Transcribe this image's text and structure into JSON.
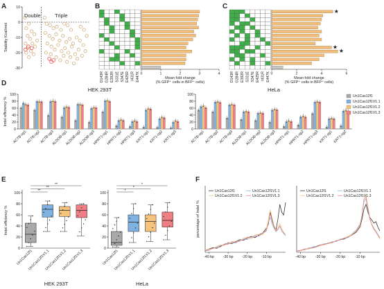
{
  "panels": {
    "A": {
      "label": "A"
    },
    "B": {
      "label": "B"
    },
    "C": {
      "label": "C"
    },
    "D": {
      "label": "D"
    },
    "E": {
      "label": "E"
    },
    "F": {
      "label": "F"
    }
  },
  "colors": {
    "Un1Cas12f1": "#a9a9a9",
    "Un1Cas12f1V1.1": "#7fb2e0",
    "Un1Cas12f1V1.2": "#f6c37c",
    "Un1Cas12f1V1.3": "#ef7f84",
    "gridGreen": "#3fae49",
    "barOrange": "#f2bd7a",
    "scatterBrown": "#c9a26a",
    "scatterRed": "#e84c4c"
  },
  "chart_data": [
    {
      "id": "A",
      "type": "scatter",
      "ylabel": "Stability Kcal/mol",
      "ylim": [
        -30,
        10
      ],
      "yticks": [
        10,
        0,
        -10,
        -20,
        -30
      ],
      "region_labels": [
        "Double",
        "Triple"
      ],
      "double": [
        [
          0.4,
          3
        ],
        [
          1.0,
          -1
        ],
        [
          0.6,
          -4
        ],
        [
          1.4,
          -6
        ],
        [
          0.8,
          -9
        ],
        [
          1.2,
          -11
        ],
        [
          1.8,
          -8
        ],
        [
          0.5,
          -14
        ],
        [
          1.5,
          -14
        ],
        [
          1.9,
          -16
        ],
        [
          0.8,
          -17
        ],
        [
          1.3,
          -19
        ],
        [
          1.7,
          -21
        ],
        [
          1.0,
          -23
        ],
        [
          2.2,
          -12
        ],
        [
          0.6,
          -20
        ]
      ],
      "double_red": [
        [
          0.9,
          -16
        ],
        [
          1.4,
          -17
        ],
        [
          0.5,
          -18
        ]
      ],
      "triple": [
        [
          3.3,
          3
        ],
        [
          3.6,
          -1
        ],
        [
          4.1,
          -2
        ],
        [
          4.6,
          -4
        ],
        [
          5.1,
          -3
        ],
        [
          5.7,
          -5
        ],
        [
          6.2,
          -1
        ],
        [
          6.7,
          -2
        ],
        [
          7.2,
          -5
        ],
        [
          3.4,
          -7
        ],
        [
          4.0,
          -9
        ],
        [
          4.5,
          -11
        ],
        [
          5.0,
          -8
        ],
        [
          5.5,
          -12
        ],
        [
          6.0,
          -9
        ],
        [
          6.5,
          -13
        ],
        [
          7.0,
          -11
        ],
        [
          7.5,
          -14
        ],
        [
          8.0,
          -10
        ],
        [
          8.5,
          -12
        ],
        [
          9.0,
          -15
        ],
        [
          9.5,
          -9
        ],
        [
          3.7,
          -14
        ],
        [
          4.3,
          -16
        ],
        [
          4.8,
          -18
        ],
        [
          5.3,
          -15
        ],
        [
          5.8,
          -19
        ],
        [
          6.3,
          -17
        ],
        [
          6.8,
          -20
        ],
        [
          7.3,
          -16
        ],
        [
          7.8,
          -21
        ],
        [
          8.3,
          -18
        ],
        [
          8.8,
          -22
        ],
        [
          9.3,
          -19
        ],
        [
          4.2,
          -21
        ],
        [
          5.0,
          -23
        ],
        [
          5.6,
          -25
        ],
        [
          6.1,
          -22
        ],
        [
          6.6,
          -26
        ],
        [
          7.1,
          -23
        ],
        [
          7.6,
          -27
        ],
        [
          8.1,
          -24
        ],
        [
          3.5,
          -20
        ],
        [
          9.1,
          -5
        ],
        [
          8.6,
          -3
        ]
      ],
      "triple_red": [
        [
          4.0,
          -24
        ],
        [
          4.6,
          -25
        ],
        [
          4.3,
          -26
        ]
      ]
    },
    {
      "id": "B",
      "type": "bar",
      "xlabel": "Mean fold change",
      "xlabel2": "(% GFP⁺ cells in BFP⁺ cells)",
      "xlim": [
        0,
        4
      ],
      "xticks": [
        0,
        1,
        2,
        3,
        4
      ],
      "grid_columns": [
        "D143R",
        "G284R",
        "E392R",
        "S331E",
        "S347E",
        "E425R",
        "I431R",
        "E447K"
      ],
      "values": [
        3.0,
        2.95,
        2.9,
        2.85,
        2.95,
        2.7,
        2.8,
        2.65,
        2.4,
        2.3,
        2.6,
        2.3,
        2.3,
        2.25,
        1.0
      ],
      "grid": [
        [
          1,
          0,
          0,
          1,
          0,
          0,
          0,
          0
        ],
        [
          1,
          0,
          0,
          0,
          1,
          0,
          0,
          0
        ],
        [
          0,
          1,
          0,
          0,
          1,
          0,
          0,
          0
        ],
        [
          0,
          1,
          0,
          0,
          0,
          1,
          0,
          0
        ],
        [
          0,
          0,
          1,
          0,
          0,
          1,
          0,
          0
        ],
        [
          0,
          0,
          1,
          0,
          0,
          0,
          1,
          0
        ],
        [
          1,
          0,
          0,
          0,
          0,
          0,
          1,
          0
        ],
        [
          0,
          1,
          0,
          0,
          0,
          0,
          0,
          1
        ],
        [
          0,
          0,
          1,
          0,
          0,
          0,
          0,
          1
        ],
        [
          0,
          0,
          0,
          1,
          0,
          0,
          0,
          1
        ],
        [
          1,
          0,
          0,
          0,
          0,
          1,
          0,
          0
        ],
        [
          0,
          0,
          0,
          1,
          0,
          0,
          1,
          0
        ],
        [
          0,
          0,
          1,
          1,
          0,
          0,
          0,
          0
        ],
        [
          0,
          0,
          0,
          0,
          1,
          0,
          0,
          1
        ],
        [
          0,
          0,
          0,
          0,
          0,
          0,
          0,
          0
        ]
      ]
    },
    {
      "id": "C",
      "type": "bar",
      "xlabel": "Mean fold change",
      "xlabel2": "(% GFP⁺ cells in BFP⁺ cells)",
      "xlim": [
        0,
        6
      ],
      "xticks": [
        0,
        2,
        4,
        6
      ],
      "grid_columns": [
        "D143R",
        "G284R",
        "E392R",
        "S331E",
        "S347E",
        "E425R",
        "I431R",
        "E447K"
      ],
      "values": [
        4.9,
        4.1,
        4.0,
        3.9,
        3.7,
        4.0,
        3.8,
        4.0,
        3.5,
        4.8,
        5.3,
        4.2,
        3.8,
        3.2,
        0.9
      ],
      "starred": [
        0,
        9,
        10
      ],
      "grid": [
        [
          1,
          1,
          1,
          0,
          0,
          0,
          0,
          0
        ],
        [
          1,
          1,
          0,
          1,
          0,
          0,
          0,
          0
        ],
        [
          1,
          1,
          0,
          0,
          1,
          0,
          0,
          0
        ],
        [
          1,
          0,
          1,
          1,
          0,
          0,
          0,
          0
        ],
        [
          0,
          1,
          1,
          0,
          1,
          0,
          0,
          0
        ],
        [
          1,
          0,
          1,
          0,
          0,
          1,
          0,
          0
        ],
        [
          0,
          1,
          0,
          1,
          0,
          1,
          0,
          0
        ],
        [
          1,
          0,
          0,
          1,
          0,
          0,
          1,
          0
        ],
        [
          0,
          0,
          1,
          1,
          0,
          0,
          0,
          1
        ],
        [
          1,
          1,
          1,
          0,
          0,
          1,
          0,
          0
        ],
        [
          1,
          1,
          0,
          1,
          1,
          0,
          0,
          0
        ],
        [
          0,
          1,
          1,
          0,
          0,
          0,
          1,
          0
        ],
        [
          1,
          0,
          1,
          0,
          1,
          0,
          0,
          0
        ],
        [
          0,
          1,
          0,
          0,
          1,
          0,
          0,
          1
        ],
        [
          0,
          0,
          0,
          0,
          0,
          0,
          0,
          0
        ]
      ]
    },
    {
      "id": "D",
      "type": "bar",
      "ylabel": "Indel efficiency %",
      "ylim": [
        0,
        100
      ],
      "yticks": [
        0,
        20,
        40,
        60,
        80,
        100
      ],
      "series": [
        {
          "name": "Un1Cas12f1",
          "color": "#a9a9a9"
        },
        {
          "name": "Un1Cas12f1V1.1",
          "color": "#7fb2e0"
        },
        {
          "name": "Un1Cas12f1V1.2",
          "color": "#f6c37c"
        },
        {
          "name": "Un1Cas12f1V1.3",
          "color": "#ef7f84"
        }
      ],
      "groups": [
        {
          "title": "HEK 293T",
          "categories": [
            "ACTB-sg1",
            "ACTB-sg2",
            "ACTB-sg3",
            "ALDOB-sg1",
            "ALDOB-sg2",
            "ALDOB-sg3",
            "HPRT1-sg1",
            "HPRT1-sg2",
            "HPRT1-sg3",
            "KRT1-sg1",
            "KRT1-sg2",
            "KRT1-sg3"
          ],
          "values": [
            [
              62,
              75,
              72,
              70
            ],
            [
              55,
              80,
              80,
              79
            ],
            [
              40,
              80,
              82,
              80
            ],
            [
              35,
              62,
              65,
              63
            ],
            [
              25,
              72,
              72,
              70
            ],
            [
              20,
              60,
              63,
              62
            ],
            [
              50,
              82,
              83,
              80
            ],
            [
              10,
              25,
              28,
              25
            ],
            [
              8,
              22,
              25,
              22
            ],
            [
              6,
              55,
              60,
              58
            ],
            [
              5,
              30,
              35,
              33
            ],
            [
              4,
              20,
              25,
              22
            ]
          ]
        },
        {
          "title": "HeLa",
          "categories": [
            "ACTB-sg1",
            "ACTB-sg2",
            "ACTB-sg3",
            "ALDOB-sg1",
            "ALDOB-sg2",
            "ALDOB-sg3",
            "HPRT1-sg1",
            "HPRT1-sg2",
            "HPRT1-sg3",
            "KRT1-sg1",
            "KRT1-sg2"
          ],
          "values": [
            [
              55,
              65,
              68,
              62
            ],
            [
              50,
              78,
              80,
              77
            ],
            [
              32,
              70,
              72,
              70
            ],
            [
              28,
              50,
              52,
              50
            ],
            [
              25,
              46,
              48,
              46
            ],
            [
              20,
              55,
              58,
              56
            ],
            [
              8,
              22,
              25,
              22
            ],
            [
              12,
              35,
              38,
              35
            ],
            [
              45,
              78,
              80,
              78
            ],
            [
              6,
              30,
              32,
              30
            ],
            [
              10,
              52,
              55,
              52
            ]
          ]
        }
      ]
    },
    {
      "id": "E",
      "type": "box",
      "ylabel": "Indel efficiency %",
      "ylim": [
        0,
        100
      ],
      "yticks": [
        0,
        20,
        40,
        60,
        80,
        100
      ],
      "categories": [
        "Un1Cas12f1",
        "Un1Cas12f1V1.1",
        "Un1Cas12f1V1.2",
        "Un1Cas12f1V1.3"
      ],
      "groups": [
        {
          "title": "HEK 293T",
          "boxes": [
            [
              3,
              10,
              25,
              45,
              58
            ],
            [
              30,
              56,
              70,
              78,
              85
            ],
            [
              30,
              57,
              68,
              75,
              82
            ],
            [
              22,
              55,
              68,
              78,
              80
            ]
          ],
          "sig": [
            "**",
            "**",
            "**"
          ]
        },
        {
          "title": "HeLa",
          "boxes": [
            [
              2,
              5,
              10,
              30,
              55
            ],
            [
              10,
              30,
              47,
              60,
              80
            ],
            [
              12,
              30,
              48,
              60,
              78
            ],
            [
              15,
              38,
              50,
              65,
              82
            ]
          ],
          "sig": [
            "*",
            "*",
            "*"
          ]
        }
      ]
    },
    {
      "id": "F",
      "type": "line",
      "ylabel": "percentage of Indel %",
      "xticks": [
        "-40 bp",
        "-30 bp",
        "-20 bp",
        "-10 bp"
      ],
      "xlim": [
        -42,
        0
      ],
      "ylim": [
        0,
        10
      ],
      "series_names": [
        "Un1Cas12f1",
        "Un1Cas12f1V1.1",
        "Un1Cas12f1V1.2",
        "Un1Cas12f1V1.3"
      ],
      "left": {
        "x": [
          -42,
          -40,
          -38,
          -36,
          -34,
          -32,
          -30,
          -28,
          -26,
          -24,
          -22,
          -20,
          -18,
          -16,
          -14,
          -12,
          -10,
          -9,
          -8,
          -7,
          -6,
          -5,
          -4,
          -3,
          -2,
          -1,
          0
        ],
        "Un1Cas12f1": [
          0.3,
          0.5,
          0.7,
          0.6,
          0.9,
          1.2,
          1.4,
          1.3,
          1.6,
          1.9,
          1.8,
          2.1,
          2.4,
          2.2,
          2.6,
          2.9,
          3.6,
          4.2,
          6.0,
          4.8,
          3.8,
          3.4,
          5.0,
          7.2,
          6.0,
          5.6,
          7.5
        ],
        "Un1Cas12f1V1.1": [
          0.2,
          0.4,
          0.6,
          0.8,
          1.0,
          1.1,
          1.3,
          1.5,
          1.4,
          1.8,
          2.0,
          1.9,
          2.3,
          2.5,
          2.4,
          2.8,
          3.2,
          4.5,
          5.2,
          4.2,
          3.6,
          3.1,
          3.4,
          3.9,
          3.2,
          2.8,
          2.5
        ],
        "Un1Cas12f1V1.2": [
          0.3,
          0.5,
          0.5,
          0.9,
          1.1,
          1.0,
          1.5,
          1.4,
          1.7,
          1.6,
          2.1,
          2.2,
          2.0,
          2.6,
          2.7,
          2.6,
          3.5,
          4.9,
          6.4,
          5.1,
          4.0,
          3.3,
          3.8,
          4.3,
          3.6,
          3.0,
          2.8
        ],
        "Un1Cas12f1V1.3": [
          0.2,
          0.3,
          0.6,
          0.7,
          0.8,
          1.2,
          1.2,
          1.6,
          1.5,
          1.7,
          1.9,
          2.3,
          2.2,
          2.4,
          2.5,
          2.9,
          3.3,
          4.4,
          5.8,
          4.6,
          3.7,
          3.2,
          3.5,
          4.0,
          3.3,
          2.9,
          2.6
        ]
      },
      "right": {
        "x": [
          -42,
          -40,
          -38,
          -36,
          -34,
          -32,
          -30,
          -28,
          -26,
          -24,
          -22,
          -20,
          -18,
          -16,
          -14,
          -12,
          -10,
          -9,
          -8,
          -7,
          -6,
          -5,
          -4,
          -3,
          -2,
          -1,
          0
        ],
        "Un1Cas12f1": [
          0.2,
          0.3,
          0.4,
          0.6,
          0.7,
          0.9,
          1.1,
          1.2,
          1.4,
          1.5,
          1.7,
          1.9,
          2.0,
          2.3,
          2.6,
          3.0,
          3.8,
          5.0,
          6.5,
          7.2,
          6.0,
          5.2,
          4.8,
          4.4,
          4.6,
          3.8,
          3.2
        ],
        "Un1Cas12f1V1.1": [
          0.2,
          0.3,
          0.5,
          0.5,
          0.8,
          0.9,
          1.0,
          1.3,
          1.3,
          1.6,
          1.6,
          2.0,
          2.1,
          2.2,
          2.8,
          3.3,
          4.2,
          5.6,
          7.6,
          8.0,
          6.4,
          4.9,
          4.2,
          3.6,
          3.2,
          2.7,
          2.2
        ],
        "Un1Cas12f1V1.2": [
          0.1,
          0.3,
          0.4,
          0.6,
          0.6,
          0.8,
          1.0,
          1.1,
          1.4,
          1.4,
          1.8,
          1.8,
          2.2,
          2.4,
          2.7,
          3.1,
          4.0,
          5.4,
          8.2,
          8.6,
          6.8,
          5.1,
          4.0,
          3.4,
          3.0,
          2.5,
          2.0
        ],
        "Un1Cas12f1V1.3": [
          0.2,
          0.2,
          0.5,
          0.5,
          0.7,
          0.8,
          1.1,
          1.2,
          1.3,
          1.5,
          1.7,
          1.9,
          2.1,
          2.3,
          2.6,
          3.2,
          4.1,
          5.5,
          7.9,
          8.3,
          6.6,
          5.0,
          4.1,
          3.5,
          3.1,
          2.6,
          2.1
        ]
      }
    }
  ]
}
